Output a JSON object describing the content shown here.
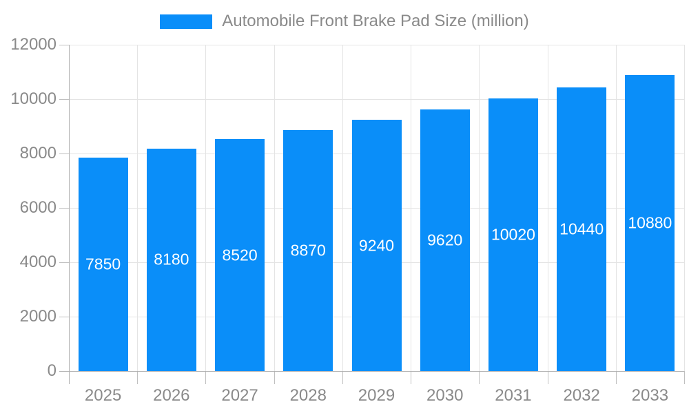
{
  "chart": {
    "legend": {
      "label": "Automobile Front Brake Pad Size (million)",
      "position": "top-center"
    },
    "colors": {
      "bar": "#0a8ef9",
      "bar_label_text": "#ffffff",
      "axis_text": "#8a8a8a",
      "legend_text": "#8a8a8a",
      "gridline": "#e4e4e4",
      "axis_line": "#b0b0b0",
      "tick_line": "#c0c0c0",
      "background": "#ffffff"
    }
  },
  "chart_data": {
    "type": "bar",
    "title": "Automobile Front Brake Pad Size (million)",
    "categories": [
      "2025",
      "2026",
      "2027",
      "2028",
      "2029",
      "2030",
      "2031",
      "2032",
      "2033"
    ],
    "values": [
      7850,
      8180,
      8520,
      8870,
      9240,
      9620,
      10020,
      10440,
      10880
    ],
    "series": [
      {
        "name": "Automobile Front Brake Pad Size (million)",
        "values": [
          7850,
          8180,
          8520,
          8870,
          9240,
          9620,
          10020,
          10440,
          10880
        ]
      }
    ],
    "xlabel": "",
    "ylabel": "",
    "ylim": [
      0,
      12000
    ],
    "yticks": [
      0,
      2000,
      4000,
      6000,
      8000,
      10000,
      12000
    ],
    "grid": true,
    "legend_position": "top",
    "value_labels": "inside-center",
    "bar_color": "#0a8ef9"
  }
}
